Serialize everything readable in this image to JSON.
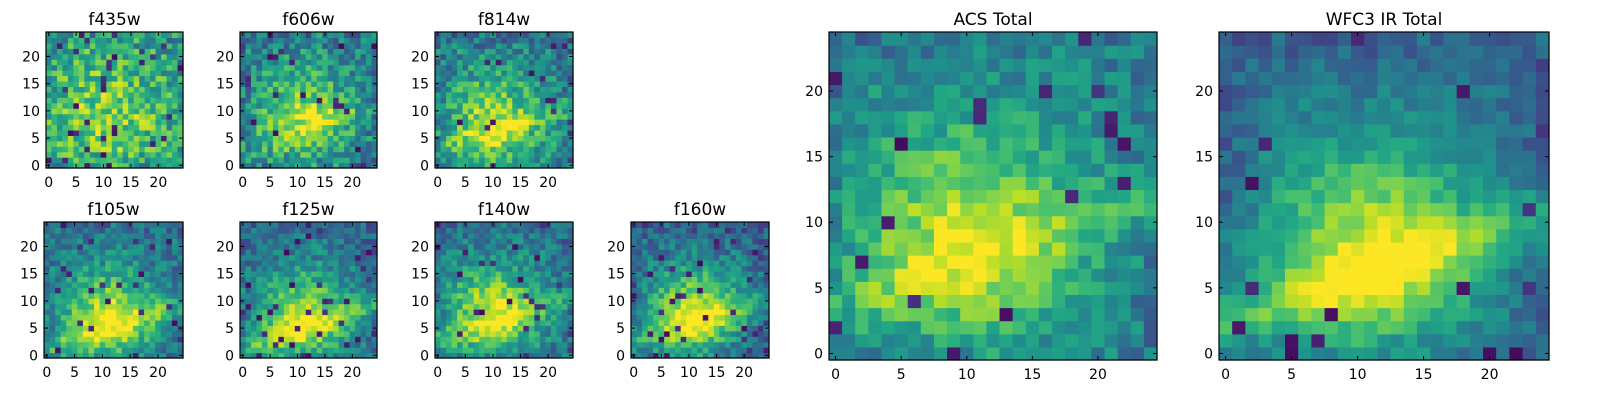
{
  "chart_data": {
    "type": "heatmap",
    "colormap": "viridis",
    "value_range": [
      0,
      1
    ],
    "panels": [
      {
        "id": "f435w",
        "title": "f435w",
        "xticks": [
          "0",
          "5",
          "10",
          "15",
          "20"
        ],
        "yticks": [
          "0",
          "5",
          "10",
          "15",
          "20"
        ],
        "xlim": [
          0,
          25
        ],
        "ylim": [
          0,
          25
        ],
        "grid_size": 25,
        "seed": 11,
        "center": [
          10,
          9
        ],
        "spread": 8,
        "base": 0.55,
        "peak": 0.25,
        "noise": 0.45,
        "ridge": 0,
        "holes": 0.04
      },
      {
        "id": "f606w",
        "title": "f606w",
        "xticks": [
          "0",
          "5",
          "10",
          "15",
          "20"
        ],
        "yticks": [
          "0",
          "5",
          "10",
          "15",
          "20"
        ],
        "xlim": [
          0,
          25
        ],
        "ylim": [
          0,
          25
        ],
        "grid_size": 25,
        "seed": 23,
        "center": [
          11,
          9
        ],
        "spread": 6,
        "base": 0.45,
        "peak": 0.4,
        "noise": 0.4,
        "ridge": 0.1,
        "holes": 0.03
      },
      {
        "id": "f814w",
        "title": "f814w",
        "xticks": [
          "0",
          "5",
          "10",
          "15",
          "20"
        ],
        "yticks": [
          "0",
          "5",
          "10",
          "15",
          "20"
        ],
        "xlim": [
          0,
          25
        ],
        "ylim": [
          0,
          25
        ],
        "grid_size": 25,
        "seed": 37,
        "center": [
          10,
          8
        ],
        "spread": 6,
        "base": 0.45,
        "peak": 0.4,
        "noise": 0.38,
        "ridge": 0.15,
        "holes": 0.03
      },
      {
        "id": "f105w",
        "title": "f105w",
        "xticks": [
          "0",
          "5",
          "10",
          "15",
          "20"
        ],
        "yticks": [
          "0",
          "5",
          "10",
          "15",
          "20"
        ],
        "xlim": [
          0,
          25
        ],
        "ylim": [
          0,
          25
        ],
        "grid_size": 25,
        "seed": 41,
        "center": [
          11,
          7
        ],
        "spread": 6,
        "base": 0.4,
        "peak": 0.5,
        "noise": 0.3,
        "ridge": 0.2,
        "holes": 0.04
      },
      {
        "id": "f125w",
        "title": "f125w",
        "xticks": [
          "0",
          "5",
          "10",
          "15",
          "20"
        ],
        "yticks": [
          "0",
          "5",
          "10",
          "15",
          "20"
        ],
        "xlim": [
          0,
          25
        ],
        "ylim": [
          0,
          25
        ],
        "grid_size": 25,
        "seed": 53,
        "center": [
          11,
          7
        ],
        "spread": 6,
        "base": 0.38,
        "peak": 0.5,
        "noise": 0.3,
        "ridge": 0.2,
        "holes": 0.05
      },
      {
        "id": "f140w",
        "title": "f140w",
        "xticks": [
          "0",
          "5",
          "10",
          "15",
          "20"
        ],
        "yticks": [
          "0",
          "5",
          "10",
          "15",
          "20"
        ],
        "xlim": [
          0,
          25
        ],
        "ylim": [
          0,
          25
        ],
        "grid_size": 25,
        "seed": 67,
        "center": [
          10,
          8
        ],
        "spread": 6,
        "base": 0.4,
        "peak": 0.5,
        "noise": 0.3,
        "ridge": 0.15,
        "holes": 0.04
      },
      {
        "id": "f160w",
        "title": "f160w",
        "xticks": [
          "0",
          "5",
          "10",
          "15",
          "20"
        ],
        "yticks": [
          "0",
          "5",
          "10",
          "15",
          "20"
        ],
        "xlim": [
          0,
          25
        ],
        "ylim": [
          0,
          25
        ],
        "grid_size": 25,
        "seed": 79,
        "center": [
          11,
          8
        ],
        "spread": 6,
        "base": 0.35,
        "peak": 0.55,
        "noise": 0.3,
        "ridge": 0.2,
        "holes": 0.06
      },
      {
        "id": "acs-total",
        "title": "ACS Total",
        "xticks": [
          "0",
          "5",
          "10",
          "15",
          "20"
        ],
        "yticks": [
          "0",
          "5",
          "10",
          "15",
          "20"
        ],
        "xlim": [
          0,
          25
        ],
        "ylim": [
          0,
          25
        ],
        "grid_size": 25,
        "seed": 97,
        "center": [
          10,
          9
        ],
        "spread": 6,
        "base": 0.45,
        "peak": 0.45,
        "noise": 0.25,
        "ridge": 0.15,
        "holes": 0.04
      },
      {
        "id": "wfc3-ir-total",
        "title": "WFC3 IR Total",
        "xticks": [
          "0",
          "5",
          "10",
          "15",
          "20"
        ],
        "yticks": [
          "0",
          "5",
          "10",
          "15",
          "20"
        ],
        "xlim": [
          0,
          25
        ],
        "ylim": [
          0,
          25
        ],
        "grid_size": 25,
        "seed": 113,
        "center": [
          11,
          8
        ],
        "spread": 6,
        "base": 0.35,
        "peak": 0.55,
        "noise": 0.18,
        "ridge": 0.25,
        "holes": 0.03
      }
    ]
  },
  "colors": {
    "axes_edge": "#000000",
    "background": "#ffffff"
  }
}
